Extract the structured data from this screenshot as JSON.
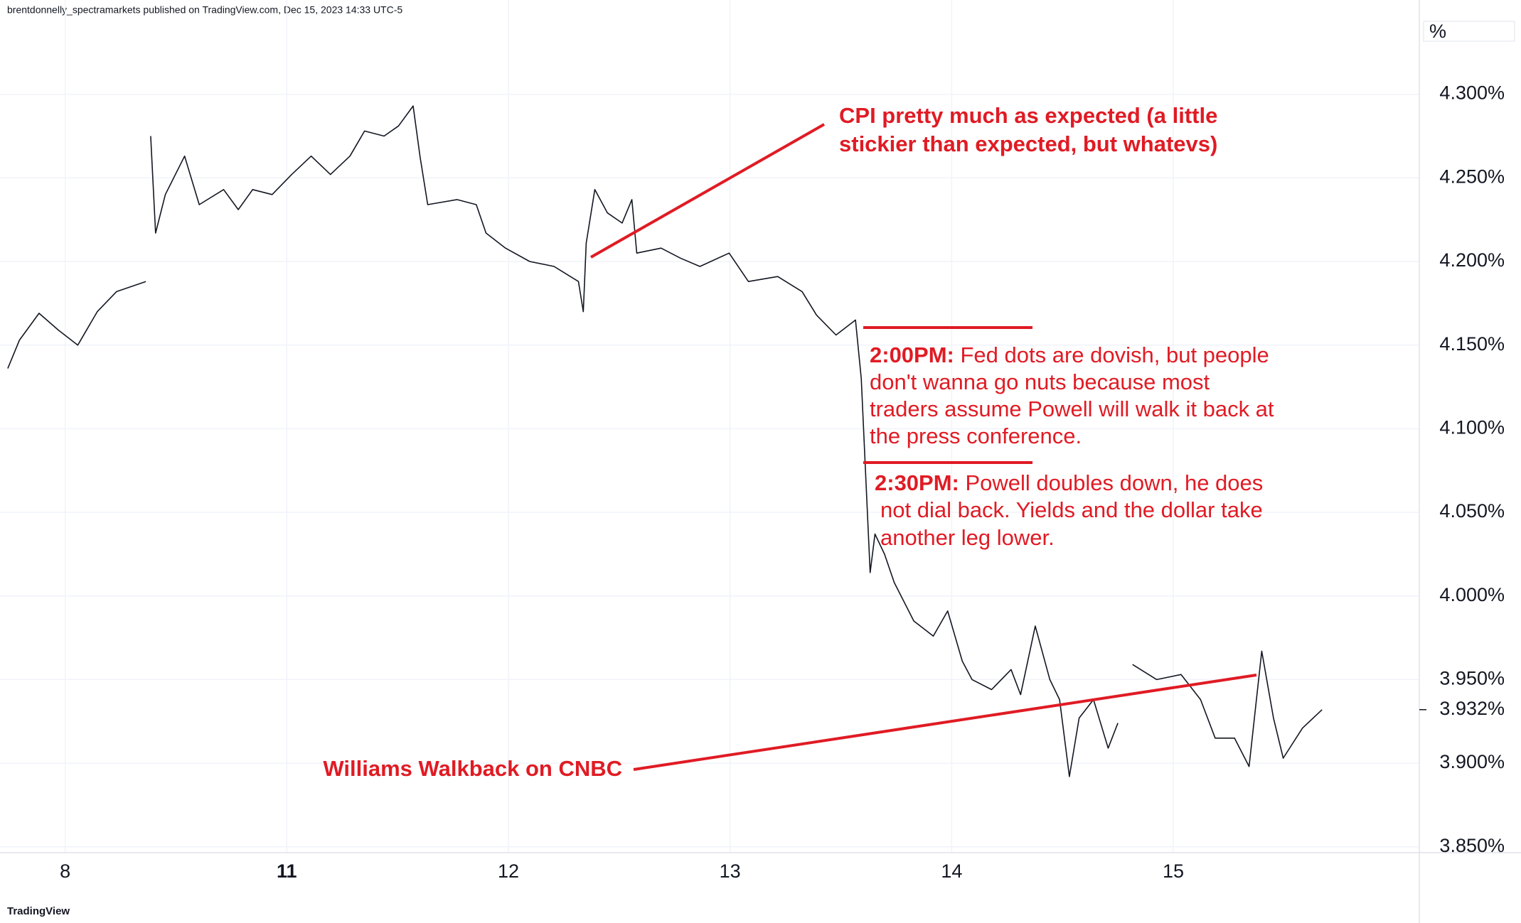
{
  "header": "brentdonnelly_spectramarkets published on TradingView.com, Dec 15, 2023 14:33 UTC-5",
  "footer": "TradingView",
  "chart_data": {
    "type": "line",
    "axis_unit": "%",
    "last_price": 3.932,
    "last_price_label": "3.932%",
    "grid": true,
    "xlim": [
      -0.294,
      6.11
    ],
    "ylim": [
      3.8465,
      4.3436
    ],
    "xticks": [
      {
        "value": 0,
        "label": "8"
      },
      {
        "value": 1,
        "label": "11"
      },
      {
        "value": 2,
        "label": "12"
      },
      {
        "value": 3,
        "label": "13"
      },
      {
        "value": 4,
        "label": "14"
      },
      {
        "value": 5,
        "label": "15"
      }
    ],
    "yticks": [
      {
        "value": 3.85,
        "label": "3.850%"
      },
      {
        "value": 3.9,
        "label": "3.900%"
      },
      {
        "value": 3.95,
        "label": "3.950%"
      },
      {
        "value": 4.0,
        "label": "4.000%"
      },
      {
        "value": 4.05,
        "label": "4.050%"
      },
      {
        "value": 4.1,
        "label": "4.100%"
      },
      {
        "value": 4.15,
        "label": "4.150%"
      },
      {
        "value": 4.2,
        "label": "4.200%"
      },
      {
        "value": 4.25,
        "label": "4.250%"
      },
      {
        "value": 4.3,
        "label": "4.300%"
      }
    ],
    "series": [
      {
        "color": "#131722",
        "x": [
          -0.259,
          -0.206,
          -0.118,
          -0.031,
          0.057,
          0.145,
          0.232,
          0.364,
          0.37,
          0.386,
          0.408,
          0.452,
          0.539,
          0.605,
          0.715,
          0.781,
          0.846,
          0.934,
          1.022,
          1.11,
          1.197,
          1.285,
          1.351,
          1.439,
          1.504,
          1.57,
          1.601,
          1.636,
          1.768,
          1.855,
          1.899,
          1.987,
          2.096,
          2.206,
          2.316,
          2.338,
          2.351,
          2.39,
          2.447,
          2.513,
          2.557,
          2.579,
          2.689,
          2.776,
          2.864,
          2.996,
          3.083,
          3.215,
          3.325,
          3.39,
          3.478,
          3.566,
          3.592,
          3.61,
          3.632,
          3.654,
          3.697,
          3.741,
          3.829,
          3.917,
          3.982,
          4.048,
          4.092,
          4.18,
          4.268,
          4.311,
          4.377,
          4.443,
          4.487,
          4.531,
          4.575,
          4.64,
          4.706,
          4.75,
          4.77,
          4.816,
          4.925,
          5.035,
          5.123,
          5.189,
          5.276,
          5.342,
          5.399,
          5.452,
          5.496,
          5.583,
          5.671
        ],
        "values": [
          4.136,
          4.153,
          4.169,
          4.159,
          4.15,
          4.17,
          4.182,
          4.188,
          null,
          4.275,
          4.217,
          4.24,
          4.263,
          4.234,
          4.243,
          4.231,
          4.243,
          4.24,
          4.252,
          4.263,
          4.252,
          4.263,
          4.278,
          4.275,
          4.281,
          4.293,
          4.263,
          4.234,
          4.237,
          4.234,
          4.217,
          4.208,
          4.2,
          4.197,
          4.188,
          4.17,
          4.211,
          4.243,
          4.229,
          4.223,
          4.237,
          4.205,
          4.208,
          4.202,
          4.197,
          4.205,
          4.188,
          4.191,
          4.182,
          4.168,
          4.156,
          4.165,
          4.13,
          4.078,
          4.014,
          4.037,
          4.025,
          4.008,
          3.985,
          3.976,
          3.991,
          3.961,
          3.95,
          3.944,
          3.956,
          3.941,
          3.982,
          3.95,
          3.938,
          3.892,
          3.927,
          3.938,
          3.909,
          3.924,
          null,
          3.959,
          3.95,
          3.953,
          3.938,
          3.915,
          3.915,
          3.898,
          3.967,
          3.927,
          3.903,
          3.921,
          3.932
        ]
      }
    ],
    "annotations": {
      "cpi": [
        "CPI pretty much as expected (a little",
        "stickier than expected, but whatevs)"
      ],
      "fed_dots": {
        "time": "2:00PM:",
        "lines": [
          " Fed dots are dovish, but people",
          "don't wanna go nuts because most",
          "traders assume Powell will walk it back at",
          "the press conference."
        ]
      },
      "powell": {
        "time": "2:30PM:",
        "lines": [
          " Powell doubles down, he does",
          "not dial back. Yields and the dollar take",
          "another leg lower."
        ]
      },
      "williams": "Williams Walkback on CNBC"
    }
  }
}
